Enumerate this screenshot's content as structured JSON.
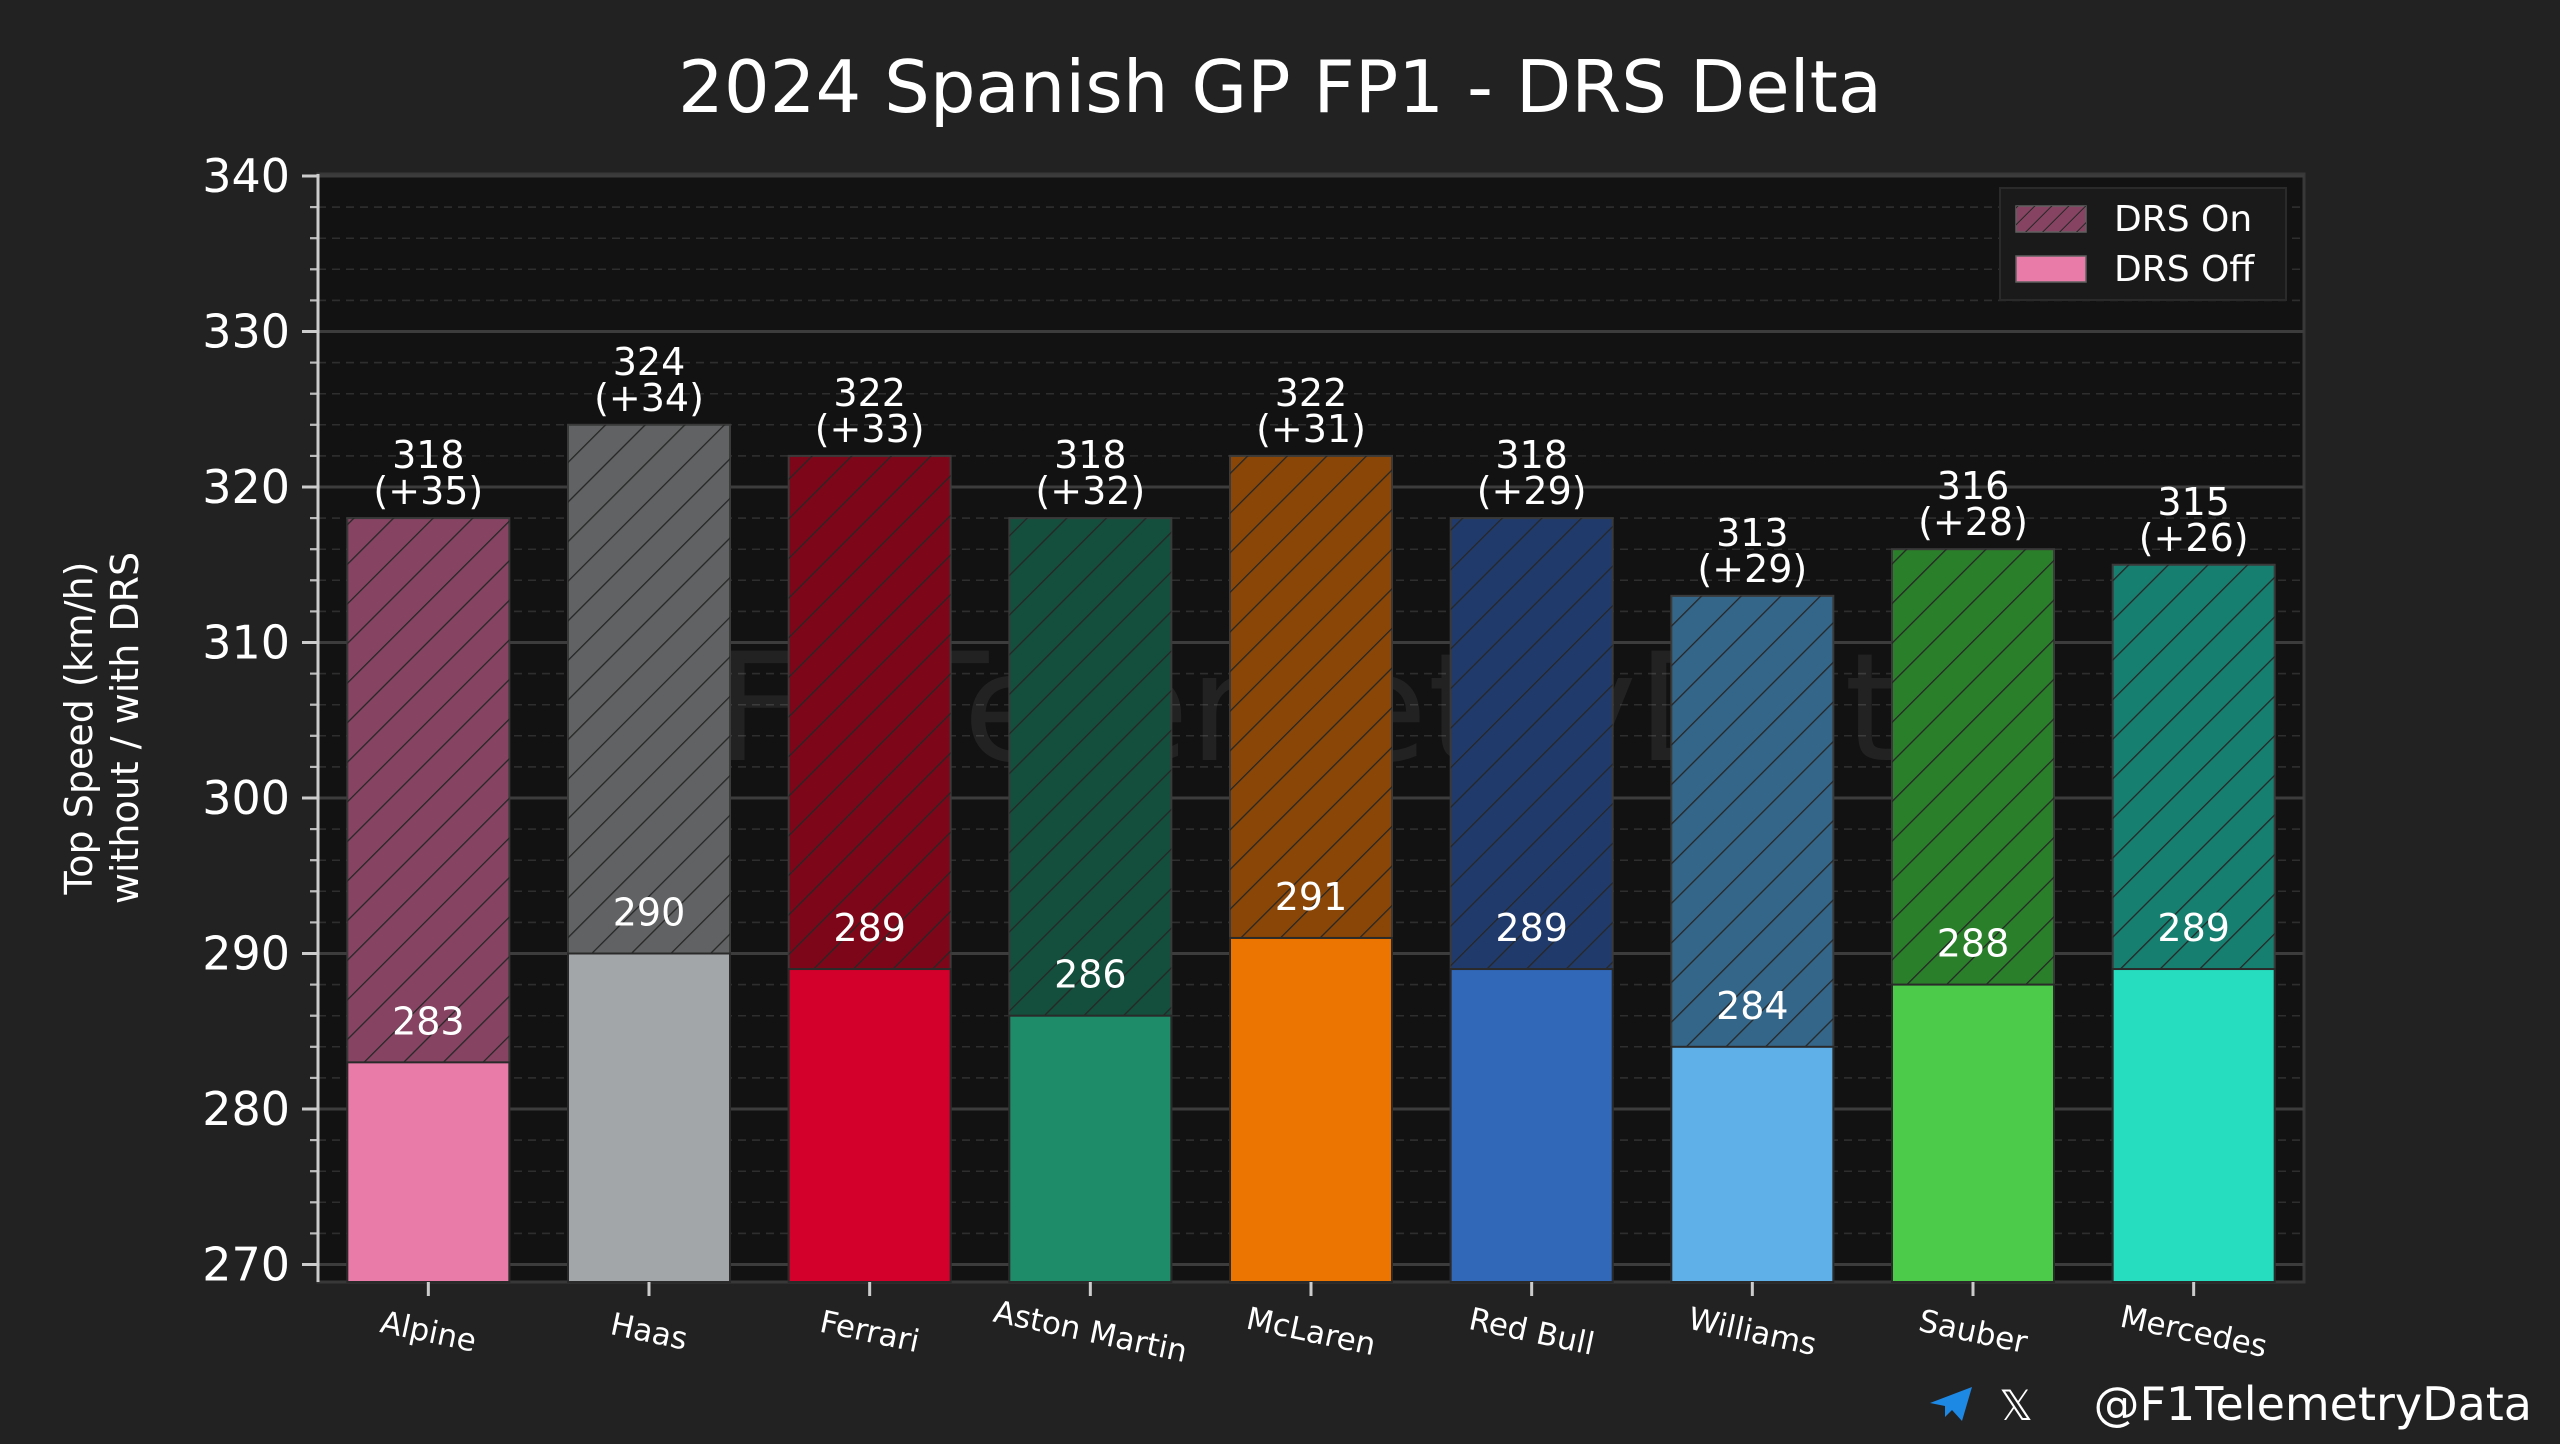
{
  "chart_data": {
    "type": "bar",
    "title": "2024 Spanish GP FP1 - DRS Delta",
    "ylabel_line1": "Top Speed (km/h)",
    "ylabel_line2": "without / with DRS",
    "xlabel": "",
    "ylim": [
      269,
      340
    ],
    "yticks": [
      270,
      280,
      290,
      300,
      310,
      320,
      330,
      340
    ],
    "ytick_labels": [
      "270",
      "280",
      "290",
      "300",
      "310",
      "320",
      "330",
      "340"
    ],
    "minor_tick_step": 2,
    "grid": "major solid, minor dashed",
    "legend_position": "top-right",
    "categories": [
      "Alpine",
      "Haas",
      "Ferrari",
      "Aston Martin",
      "McLaren",
      "Red Bull",
      "Williams",
      "Sauber",
      "Mercedes"
    ],
    "series": [
      {
        "name": "DRS On",
        "values": [
          318,
          324,
          322,
          318,
          322,
          318,
          313,
          316,
          315
        ],
        "labels": [
          "318",
          "324",
          "322",
          "318",
          "322",
          "318",
          "313",
          "316",
          "315"
        ],
        "delta_labels": [
          "(+35)",
          "(+34)",
          "(+33)",
          "(+32)",
          "(+31)",
          "(+29)",
          "(+29)",
          "(+28)",
          "(+26)"
        ]
      },
      {
        "name": "DRS Off",
        "values": [
          283,
          290,
          289,
          286,
          291,
          289,
          284,
          288,
          289
        ],
        "labels": [
          "283",
          "290",
          "289",
          "286",
          "291",
          "289",
          "284",
          "288",
          "289"
        ]
      }
    ],
    "team_colors": [
      "#E87BA8",
      "#A3A6A8",
      "#D2002A",
      "#1E8C68",
      "#EC7400",
      "#3168B8",
      "#5FB0E8",
      "#4CCB4A",
      "#26DDBF"
    ],
    "team_colors_dark": [
      "#864462",
      "#606263",
      "#7D0719",
      "#144E3C",
      "#8A4606",
      "#203B6B",
      "#346689",
      "#2A7F2A",
      "#167F70"
    ],
    "legend_colors": [
      "#864462",
      "#E87BA8"
    ]
  },
  "watermark": "@F1TelemetryData",
  "footer": {
    "handle": "@F1TelemetryData",
    "telegram_icon": "telegram-icon",
    "x_icon": "x-icon",
    "x_glyph": "𝕏",
    "telegram_color": "#1E88E5"
  }
}
